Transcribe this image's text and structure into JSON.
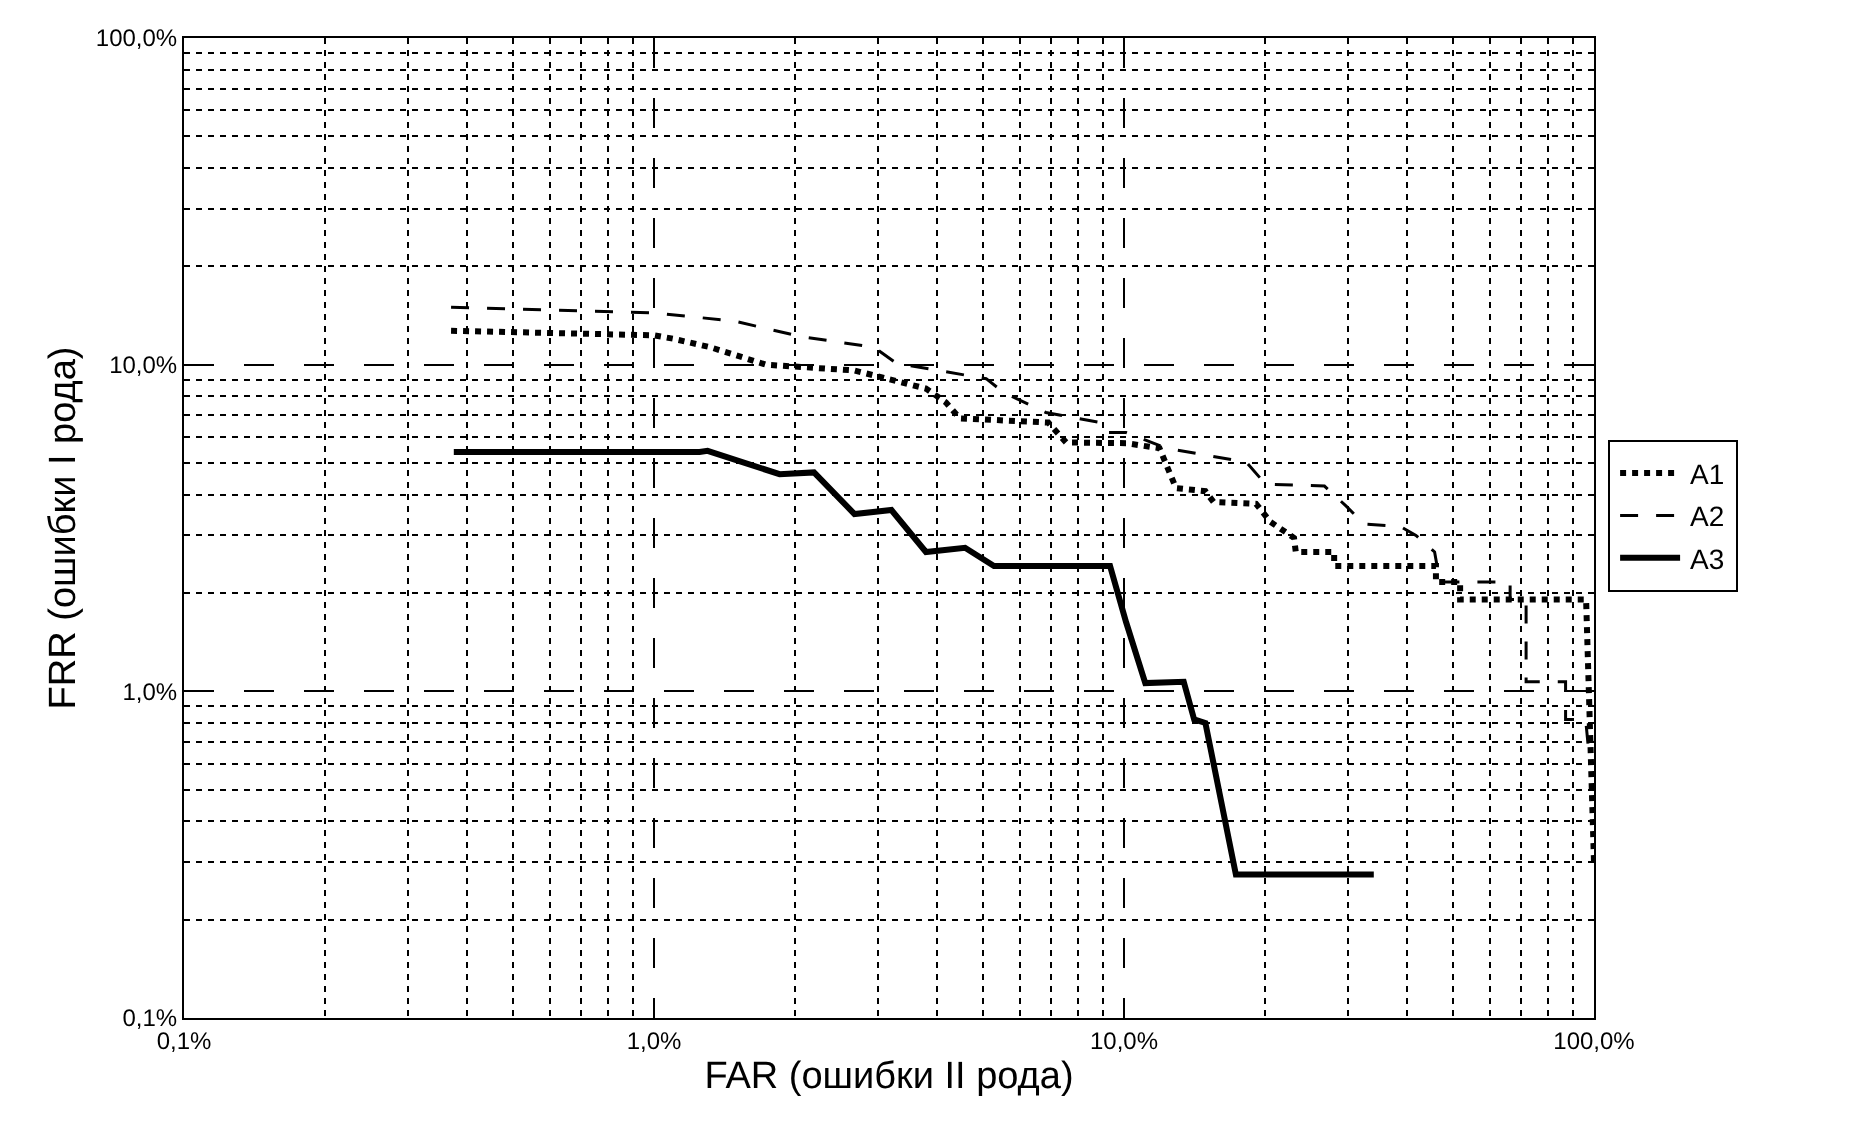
{
  "chart_data": {
    "type": "line",
    "xlabel": "FAR (ошибки II рода)",
    "ylabel": "FRR (ошибки I рода)",
    "log": "xy",
    "grid": true,
    "legend": "right",
    "xlim": [
      0.1,
      100
    ],
    "ylim": [
      0.1,
      100
    ],
    "xticks": [
      {
        "value": 0.1,
        "label": "0,1%"
      },
      {
        "value": 1,
        "label": "1,0%"
      },
      {
        "value": 10,
        "label": "10,0%"
      },
      {
        "value": 100,
        "label": "100,0%"
      }
    ],
    "yticks": [
      {
        "value": 0.1,
        "label": "0,1%"
      },
      {
        "value": 1,
        "label": "1,0%"
      },
      {
        "value": 10,
        "label": "10,0%"
      },
      {
        "value": 100,
        "label": "100,0%"
      }
    ],
    "series": [
      {
        "name": "A1",
        "color": "#000000",
        "line_style": "dotted",
        "x": [
          0.37,
          1.0,
          1.1,
          1.32,
          1.73,
          2.67,
          3.79,
          4.18,
          4.47,
          6.9,
          7.53,
          10.1,
          11.9,
          12.9,
          14.9,
          15.5,
          19.1,
          20.5,
          23.0,
          23.2,
          28.0,
          28.0,
          46.1,
          46.1,
          51.9,
          51.9,
          96.2,
          100
        ],
        "values": [
          12.7,
          12.3,
          12.0,
          11.3,
          10.0,
          9.6,
          8.45,
          7.66,
          6.85,
          6.65,
          5.78,
          5.75,
          5.55,
          4.19,
          4.1,
          3.8,
          3.75,
          3.3,
          2.95,
          2.67,
          2.67,
          2.42,
          2.42,
          2.16,
          2.16,
          1.91,
          1.91,
          0.3
        ]
      },
      {
        "name": "A2",
        "color": "#000000",
        "line_style": "dashed",
        "x": [
          0.37,
          1.0,
          1.48,
          2.05,
          2.94,
          3.28,
          5.09,
          5.56,
          6.82,
          8.9,
          9.1,
          10.1,
          12.3,
          18.2,
          20.0,
          26.7,
          29.7,
          32.4,
          38.7,
          41.8,
          45.8,
          47.0,
          66.3,
          66.3,
          71.7,
          71.7,
          87,
          87,
          96,
          98
        ],
        "values": [
          15.0,
          14.4,
          13.6,
          12.2,
          11.3,
          10.1,
          9.06,
          8.2,
          7.14,
          6.65,
          6.2,
          6.2,
          5.55,
          5.03,
          4.31,
          4.25,
          3.69,
          3.25,
          3.2,
          3.0,
          2.67,
          2.16,
          2.16,
          1.91,
          1.91,
          1.07,
          1.07,
          0.82,
          0.82,
          0.6
        ]
      },
      {
        "name": "A3",
        "color": "#000000",
        "line_style": "solid",
        "x": [
          0.375,
          1.25,
          1.3,
          1.85,
          2.19,
          2.67,
          3.2,
          3.79,
          4.59,
          5.29,
          9.34,
          10.1,
          11.1,
          13.4,
          14.1,
          14.9,
          17.3,
          34
        ],
        "values": [
          5.4,
          5.4,
          5.45,
          4.62,
          4.68,
          3.49,
          3.59,
          2.67,
          2.75,
          2.42,
          2.42,
          1.63,
          1.06,
          1.07,
          0.82,
          0.8,
          0.275,
          0.275
        ]
      }
    ]
  }
}
